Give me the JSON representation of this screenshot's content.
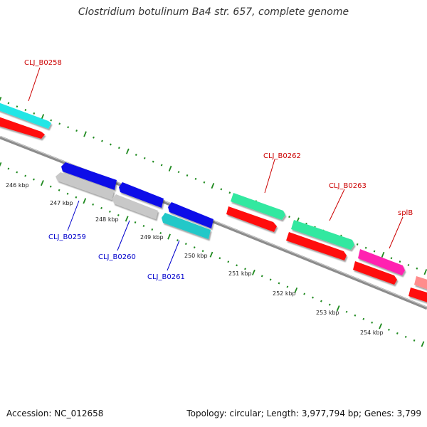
{
  "title": "Clostridium botulinum Ba4 str. 657, complete genome",
  "footer": {
    "accession": "Accession: NC_012658",
    "summary": "Topology: circular; Length: 3,977,794 bp; Genes: 3,799"
  },
  "colors": {
    "backbone": "#8c8c8c",
    "ticks": "#1f8a1f",
    "label_forward": "#cc0000",
    "label_reverse": "#0000cc",
    "cyan": "#22e6e6",
    "red": "#ff1010",
    "blue": "#1010e8",
    "gray": "#c8c8c8",
    "teal": "#20c8c8",
    "green": "#30e8a0",
    "magenta": "#ff20b0",
    "pink": "#ff8c8c"
  },
  "scale": {
    "ticks": [
      {
        "label": "246 kbp"
      },
      {
        "label": "247 kbp"
      },
      {
        "label": "248 kbp"
      },
      {
        "label": "249 kbp"
      },
      {
        "label": "250 kbp"
      },
      {
        "label": "251 kbp"
      },
      {
        "label": "252 kbp"
      },
      {
        "label": "253 kbp"
      },
      {
        "label": "254 kbp"
      }
    ]
  },
  "gene_labels": [
    {
      "name": "CLJ_B0258",
      "strand": "forward"
    },
    {
      "name": "CLJ_B0259",
      "strand": "reverse"
    },
    {
      "name": "CLJ_B0260",
      "strand": "reverse"
    },
    {
      "name": "CLJ_B0261",
      "strand": "reverse"
    },
    {
      "name": "CLJ_B0262",
      "strand": "forward"
    },
    {
      "name": "CLJ_B0263",
      "strand": "forward"
    },
    {
      "name": "splB",
      "strand": "forward"
    }
  ]
}
